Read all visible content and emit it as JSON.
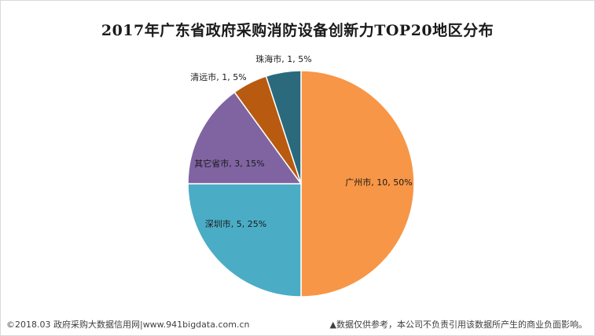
{
  "chart_data": {
    "type": "pie",
    "title": "2017年广东省政府采购消防设备创新力TOP20地区分布",
    "slices": [
      {
        "label": "广州市",
        "value": 10,
        "percent": "50%",
        "color": "#F79646"
      },
      {
        "label": "深圳市",
        "value": 5,
        "percent": "25%",
        "color": "#4BACC6"
      },
      {
        "label": "其它省市",
        "value": 3,
        "percent": "15%",
        "color": "#8064A2"
      },
      {
        "label": "清远市",
        "value": 1,
        "percent": "5%",
        "color": "#B85A0F"
      },
      {
        "label": "珠海市",
        "value": 1,
        "percent": "5%",
        "color": "#2B6A7D"
      }
    ]
  },
  "footer": {
    "left": "©2018.03 政府采购大数据信用网|www.941bigdata.com.cn",
    "right": "▲数据仅供参考，本公司不负责引用该数据所产生的商业负面影响。"
  }
}
